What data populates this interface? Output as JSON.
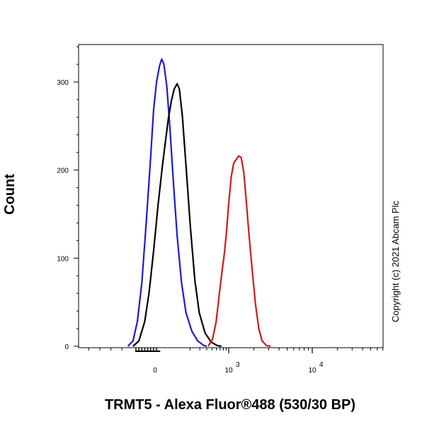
{
  "chart_data": {
    "type": "line",
    "xlabel": "TRMT5 - Alexa Fluor®488 (530/30 BP)",
    "ylabel": "Count",
    "copyright": "Copyright (c) 2021 Abcam Plc",
    "ylim": [
      0,
      345
    ],
    "xscale": "biexponential",
    "y_ticks": [
      {
        "label": "0",
        "value": 0
      },
      {
        "label": "100",
        "value": 100
      },
      {
        "label": "200",
        "value": 200
      },
      {
        "label": "300",
        "value": 300
      }
    ],
    "x_tick_labels": [
      {
        "base": "0",
        "exp": ""
      },
      {
        "base": "10",
        "exp": "3"
      },
      {
        "base": "10",
        "exp": "4"
      }
    ],
    "grid": false,
    "legend": "none",
    "series": [
      {
        "color": "#1a1ad6",
        "points": [
          [
            -0.37,
            0
          ],
          [
            -0.3,
            6
          ],
          [
            -0.24,
            28
          ],
          [
            -0.18,
            72
          ],
          [
            -0.12,
            140
          ],
          [
            -0.06,
            215
          ],
          [
            -0.02,
            268
          ],
          [
            0.02,
            300
          ],
          [
            0.06,
            318
          ],
          [
            0.09,
            326
          ],
          [
            0.12,
            320
          ],
          [
            0.16,
            295
          ],
          [
            0.2,
            250
          ],
          [
            0.25,
            185
          ],
          [
            0.3,
            125
          ],
          [
            0.36,
            72
          ],
          [
            0.42,
            38
          ],
          [
            0.5,
            17
          ],
          [
            0.58,
            6
          ],
          [
            0.66,
            1
          ],
          [
            0.7,
            0
          ]
        ]
      },
      {
        "color": "#000000",
        "points": [
          [
            -0.3,
            0
          ],
          [
            -0.22,
            6
          ],
          [
            -0.14,
            28
          ],
          [
            -0.08,
            62
          ],
          [
            -0.02,
            108
          ],
          [
            0.04,
            160
          ],
          [
            0.1,
            205
          ],
          [
            0.14,
            232
          ],
          [
            0.18,
            258
          ],
          [
            0.22,
            278
          ],
          [
            0.26,
            292
          ],
          [
            0.3,
            298
          ],
          [
            0.33,
            292
          ],
          [
            0.37,
            262
          ],
          [
            0.42,
            205
          ],
          [
            0.48,
            135
          ],
          [
            0.54,
            75
          ],
          [
            0.6,
            38
          ],
          [
            0.68,
            15
          ],
          [
            0.76,
            5
          ],
          [
            0.84,
            1
          ],
          [
            0.9,
            0
          ]
        ]
      },
      {
        "color": "#d41818",
        "points": [
          [
            0.72,
            0
          ],
          [
            0.78,
            8
          ],
          [
            0.83,
            28
          ],
          [
            0.87,
            58
          ],
          [
            0.91,
            85
          ],
          [
            0.94,
            105
          ],
          [
            0.97,
            130
          ],
          [
            1.0,
            162
          ],
          [
            1.03,
            192
          ],
          [
            1.06,
            208
          ],
          [
            1.09,
            212
          ],
          [
            1.12,
            216
          ],
          [
            1.15,
            214
          ],
          [
            1.18,
            198
          ],
          [
            1.21,
            165
          ],
          [
            1.24,
            130
          ],
          [
            1.28,
            88
          ],
          [
            1.32,
            48
          ],
          [
            1.36,
            20
          ],
          [
            1.4,
            6
          ],
          [
            1.45,
            1
          ],
          [
            1.5,
            0
          ]
        ]
      }
    ]
  }
}
